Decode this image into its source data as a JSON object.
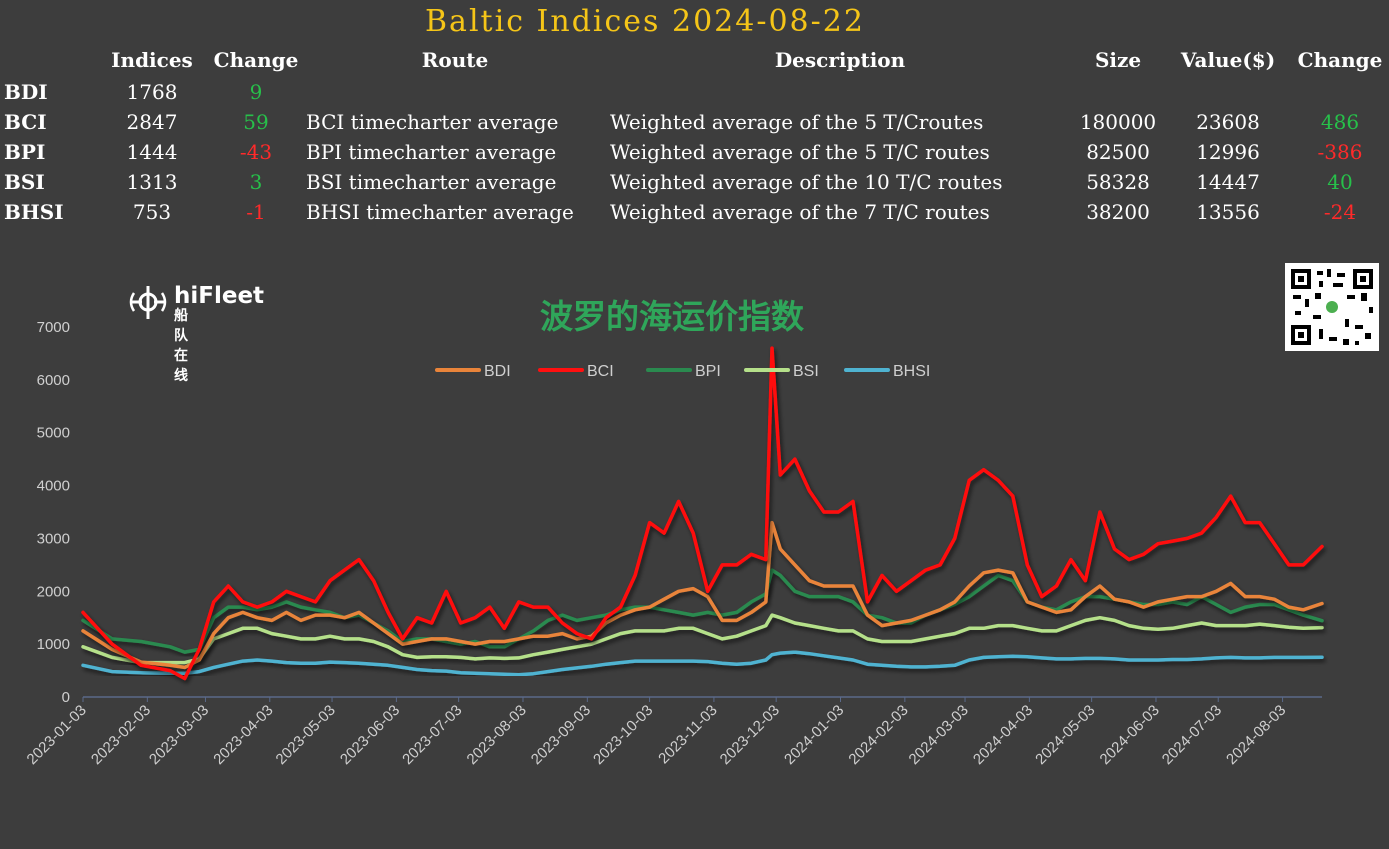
{
  "header": {
    "title": "Baltic Indices 2024-08-22",
    "col_indices": "Indices",
    "col_change": "Change",
    "col_route": "Route",
    "col_description": "Description",
    "col_size": "Size",
    "col_value": "Value($)",
    "col_change2": "Change"
  },
  "rows": [
    {
      "name": "BDI",
      "index": "1768",
      "change": "9",
      "route": "",
      "description": "",
      "size": "",
      "value": "",
      "change2": ""
    },
    {
      "name": "BCI",
      "index": "2847",
      "change": "59",
      "route": "BCI timecharter average",
      "description": "Weighted average of the 5 T/Croutes",
      "size": "180000",
      "value": "23608",
      "change2": "486"
    },
    {
      "name": "BPI",
      "index": "1444",
      "change": "-43",
      "route": "BPI timecharter average",
      "description": "Weighted average of the 5 T/C routes",
      "size": "82500",
      "value": "12996",
      "change2": "-386"
    },
    {
      "name": "BSI",
      "index": "1313",
      "change": "3",
      "route": "BSI timecharter average",
      "description": "Weighted average of the 10 T/C routes",
      "size": "58328",
      "value": "14447",
      "change2": "40"
    },
    {
      "name": "BHSI",
      "index": "753",
      "change": "-1",
      "route": "BHSI timecharter average",
      "description": "Weighted average of the 7 T/C routes",
      "size": "38200",
      "value": "13556",
      "change2": "-24"
    }
  ],
  "logo": {
    "name": "hiFleet",
    "sub": "船队在线"
  },
  "colors": {
    "title": "#f5c518",
    "positive": "#27c04a",
    "negative": "#ff2a2a",
    "background": "#3d3d3d"
  },
  "chart_data": {
    "type": "line",
    "title": "波罗的海运价指数",
    "legend_position": "top",
    "grid": false,
    "ylim": [
      0,
      7000
    ],
    "yticks": [
      0,
      1000,
      2000,
      3000,
      4000,
      5000,
      6000,
      7000
    ],
    "xlim": [
      "2023-01-03",
      "2024-08-22"
    ],
    "xticks": [
      "2023-01-03",
      "2023-02-03",
      "2023-03-03",
      "2023-04-03",
      "2023-05-03",
      "2023-06-03",
      "2023-07-03",
      "2023-08-03",
      "2023-09-03",
      "2023-10-03",
      "2023-11-03",
      "2023-12-03",
      "2024-01-03",
      "2024-02-03",
      "2024-03-03",
      "2024-04-03",
      "2024-05-03",
      "2024-06-03",
      "2024-07-03",
      "2024-08-03"
    ],
    "x": [
      "2023-01-03",
      "2023-01-17",
      "2023-01-31",
      "2023-02-14",
      "2023-02-21",
      "2023-02-28",
      "2023-03-07",
      "2023-03-14",
      "2023-03-21",
      "2023-03-28",
      "2023-04-04",
      "2023-04-11",
      "2023-04-18",
      "2023-04-25",
      "2023-05-02",
      "2023-05-09",
      "2023-05-16",
      "2023-05-23",
      "2023-05-30",
      "2023-06-06",
      "2023-06-13",
      "2023-06-20",
      "2023-06-27",
      "2023-07-04",
      "2023-07-11",
      "2023-07-18",
      "2023-07-25",
      "2023-08-01",
      "2023-08-08",
      "2023-08-15",
      "2023-08-22",
      "2023-08-29",
      "2023-09-05",
      "2023-09-12",
      "2023-09-19",
      "2023-09-26",
      "2023-10-03",
      "2023-10-10",
      "2023-10-17",
      "2023-10-24",
      "2023-10-31",
      "2023-11-07",
      "2023-11-14",
      "2023-11-21",
      "2023-11-28",
      "2023-12-01",
      "2023-12-05",
      "2023-12-12",
      "2023-12-19",
      "2023-12-26",
      "2024-01-02",
      "2024-01-09",
      "2024-01-16",
      "2024-01-23",
      "2024-01-30",
      "2024-02-06",
      "2024-02-13",
      "2024-02-20",
      "2024-02-27",
      "2024-03-05",
      "2024-03-12",
      "2024-03-19",
      "2024-03-26",
      "2024-04-02",
      "2024-04-09",
      "2024-04-16",
      "2024-04-23",
      "2024-04-30",
      "2024-05-07",
      "2024-05-14",
      "2024-05-21",
      "2024-05-28",
      "2024-06-04",
      "2024-06-11",
      "2024-06-18",
      "2024-06-25",
      "2024-07-02",
      "2024-07-09",
      "2024-07-16",
      "2024-07-23",
      "2024-07-30",
      "2024-08-06",
      "2024-08-13",
      "2024-08-22"
    ],
    "series": [
      {
        "name": "BDI",
        "color": "#e9843a",
        "values": [
          1250,
          900,
          660,
          600,
          560,
          700,
          1200,
          1500,
          1600,
          1500,
          1450,
          1600,
          1450,
          1550,
          1550,
          1500,
          1600,
          1400,
          1200,
          1000,
          1050,
          1100,
          1100,
          1050,
          1000,
          1050,
          1050,
          1100,
          1150,
          1150,
          1200,
          1100,
          1150,
          1400,
          1550,
          1650,
          1700,
          1850,
          2000,
          2050,
          1900,
          1450,
          1450,
          1600,
          1800,
          3300,
          2800,
          2500,
          2200,
          2100,
          2100,
          2100,
          1550,
          1350,
          1400,
          1450,
          1550,
          1650,
          1800,
          2100,
          2350,
          2400,
          2350,
          1800,
          1700,
          1600,
          1650,
          1900,
          2100,
          1850,
          1800,
          1700,
          1800,
          1850,
          1900,
          1900,
          2000,
          2150,
          1900,
          1900,
          1850,
          1700,
          1650,
          1768
        ]
      },
      {
        "name": "BCI",
        "color": "#ff0f0f",
        "values": [
          1600,
          1000,
          600,
          500,
          350,
          900,
          1800,
          2100,
          1800,
          1700,
          1800,
          2000,
          1900,
          1800,
          2200,
          2400,
          2600,
          2200,
          1600,
          1100,
          1500,
          1400,
          2000,
          1400,
          1500,
          1700,
          1300,
          1800,
          1700,
          1700,
          1400,
          1200,
          1100,
          1500,
          1700,
          2300,
          3300,
          3100,
          3700,
          3100,
          2000,
          2500,
          2500,
          2700,
          2600,
          6600,
          4200,
          4500,
          3900,
          3500,
          3500,
          3700,
          1800,
          2300,
          2000,
          2200,
          2400,
          2500,
          3000,
          4100,
          4300,
          4100,
          3800,
          2500,
          1900,
          2100,
          2600,
          2200,
          3500,
          2800,
          2600,
          2700,
          2900,
          2950,
          3000,
          3100,
          3400,
          3800,
          3300,
          3300,
          2900,
          2500,
          2500,
          2847
        ]
      },
      {
        "name": "BPI",
        "color": "#2a8a4f",
        "values": [
          1450,
          1100,
          1050,
          950,
          850,
          900,
          1500,
          1700,
          1700,
          1650,
          1700,
          1800,
          1700,
          1650,
          1600,
          1500,
          1550,
          1400,
          1250,
          1050,
          1100,
          1100,
          1050,
          1000,
          1050,
          950,
          950,
          1100,
          1250,
          1450,
          1550,
          1450,
          1500,
          1550,
          1650,
          1700,
          1700,
          1650,
          1600,
          1550,
          1600,
          1550,
          1600,
          1800,
          1950,
          2400,
          2300,
          2000,
          1900,
          1900,
          1900,
          1800,
          1550,
          1500,
          1400,
          1400,
          1550,
          1650,
          1750,
          1900,
          2100,
          2300,
          2200,
          1800,
          1700,
          1650,
          1800,
          1900,
          1900,
          1850,
          1800,
          1750,
          1750,
          1800,
          1750,
          1900,
          1750,
          1600,
          1700,
          1750,
          1750,
          1650,
          1550,
          1444
        ]
      },
      {
        "name": "BSI",
        "color": "#b5e08a",
        "values": [
          950,
          750,
          650,
          650,
          650,
          720,
          1100,
          1200,
          1300,
          1300,
          1200,
          1150,
          1100,
          1100,
          1150,
          1100,
          1100,
          1050,
          950,
          800,
          750,
          760,
          760,
          750,
          720,
          740,
          730,
          740,
          800,
          850,
          900,
          950,
          1000,
          1100,
          1200,
          1250,
          1250,
          1250,
          1300,
          1300,
          1200,
          1100,
          1150,
          1250,
          1350,
          1550,
          1500,
          1400,
          1350,
          1300,
          1250,
          1250,
          1100,
          1050,
          1050,
          1050,
          1100,
          1150,
          1200,
          1300,
          1300,
          1350,
          1350,
          1300,
          1250,
          1250,
          1350,
          1450,
          1500,
          1450,
          1350,
          1300,
          1280,
          1300,
          1350,
          1400,
          1350,
          1350,
          1350,
          1380,
          1350,
          1320,
          1300,
          1313
        ]
      },
      {
        "name": "BHSI",
        "color": "#4fb3d1",
        "values": [
          600,
          480,
          460,
          450,
          450,
          480,
          560,
          620,
          680,
          700,
          680,
          650,
          640,
          640,
          660,
          650,
          640,
          620,
          600,
          560,
          520,
          500,
          490,
          460,
          450,
          440,
          430,
          420,
          440,
          480,
          520,
          550,
          580,
          620,
          650,
          680,
          680,
          680,
          680,
          680,
          670,
          640,
          620,
          640,
          700,
          800,
          830,
          850,
          820,
          780,
          740,
          700,
          620,
          600,
          580,
          570,
          570,
          580,
          600,
          700,
          750,
          760,
          770,
          760,
          740,
          720,
          720,
          730,
          730,
          720,
          700,
          700,
          700,
          710,
          710,
          720,
          740,
          750,
          740,
          740,
          750,
          750,
          750,
          753
        ]
      }
    ]
  }
}
